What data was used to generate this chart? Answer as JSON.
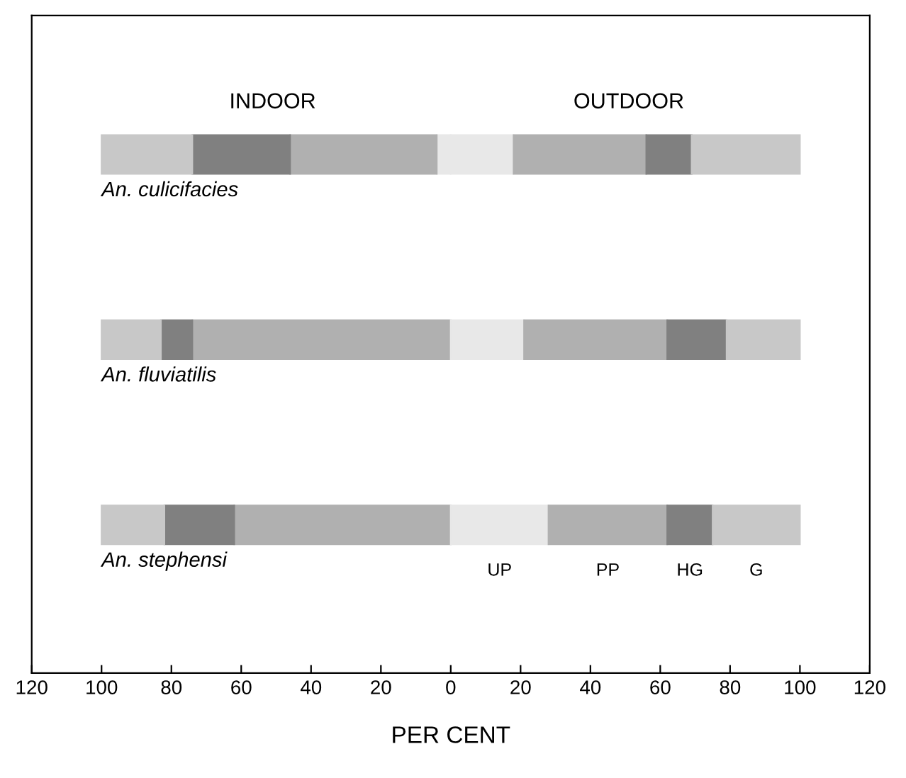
{
  "chart_data": {
    "type": "bar",
    "orientation": "horizontal",
    "stacked": true,
    "xlabel": "PER CENT",
    "categories": [
      "An. culicifacies",
      "An. fluviatilis",
      "An. stephensi"
    ],
    "annotations": [
      "INDOOR",
      "OUTDOOR"
    ],
    "series": [
      {
        "color": "#e8e8e8",
        "values": [
          -4,
          0,
          0
        ]
      },
      {
        "color": "#b0b0b0",
        "values": [
          -42,
          -74,
          -62
        ]
      },
      {
        "color": "#808080",
        "values": [
          -28,
          -9,
          -20
        ]
      },
      {
        "color": "#c8c8c8",
        "values": [
          -26,
          -17,
          -18
        ]
      },
      {
        "name": "UP",
        "color": "#e8e8e8",
        "values": [
          18,
          21,
          28
        ]
      },
      {
        "name": "PP",
        "color": "#b0b0b0",
        "values": [
          38,
          41,
          34
        ]
      },
      {
        "name": "HG",
        "color": "#808080",
        "values": [
          13,
          17,
          13
        ]
      },
      {
        "name": "G",
        "color": "#c8c8c8",
        "values": [
          31,
          21,
          25
        ]
      }
    ],
    "xlim": [
      -120,
      120
    ],
    "xticks": [
      {
        "value": -120,
        "label": "120"
      },
      {
        "value": -100,
        "label": "100"
      },
      {
        "value": -80,
        "label": "80"
      },
      {
        "value": -60,
        "label": "60"
      },
      {
        "value": -40,
        "label": "40"
      },
      {
        "value": -20,
        "label": "20"
      },
      0,
      20,
      40,
      60,
      80,
      100,
      120
    ],
    "grid": false,
    "legend": false
  }
}
